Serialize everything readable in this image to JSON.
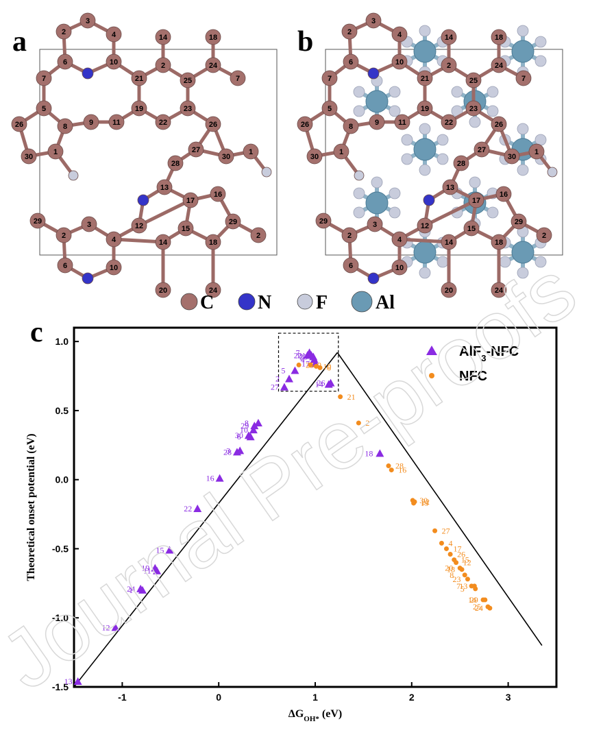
{
  "panels": {
    "a": {
      "letter": "a"
    },
    "b": {
      "letter": "b"
    },
    "c": {
      "letter": "c"
    }
  },
  "atom_legend": [
    {
      "label": "C",
      "color": "#a4706c"
    },
    {
      "label": "N",
      "color": "#3434c8"
    },
    {
      "label": "F",
      "color": "#c8ccdc"
    },
    {
      "label": "Al",
      "color": "#6a9ab4"
    }
  ],
  "structure_atoms": {
    "a": [
      {
        "n": "3",
        "t": "C"
      },
      {
        "n": "2",
        "t": "C"
      },
      {
        "n": "4",
        "t": "C"
      },
      {
        "n": "6",
        "t": "C"
      },
      {
        "n": "",
        "t": "N"
      },
      {
        "n": "10",
        "t": "C"
      },
      {
        "n": "14",
        "t": "C"
      },
      {
        "n": "18",
        "t": "C"
      },
      {
        "n": "7",
        "t": "C"
      },
      {
        "n": "21",
        "t": "C"
      },
      {
        "n": "2",
        "t": "C"
      },
      {
        "n": "25",
        "t": "C"
      },
      {
        "n": "24",
        "t": "C"
      },
      {
        "n": "7",
        "t": "C"
      },
      {
        "n": "5",
        "t": "C"
      },
      {
        "n": "26",
        "t": "C"
      },
      {
        "n": "8",
        "t": "C"
      },
      {
        "n": "9",
        "t": "C"
      },
      {
        "n": "11",
        "t": "C"
      },
      {
        "n": "19",
        "t": "C"
      },
      {
        "n": "22",
        "t": "C"
      },
      {
        "n": "23",
        "t": "C"
      },
      {
        "n": "26",
        "t": "C"
      },
      {
        "n": "1",
        "t": "C"
      },
      {
        "n": "30",
        "t": "C"
      },
      {
        "n": "",
        "t": "F"
      },
      {
        "n": "27",
        "t": "C"
      },
      {
        "n": "30",
        "t": "C"
      },
      {
        "n": "1",
        "t": "C"
      },
      {
        "n": "",
        "t": "F"
      },
      {
        "n": "28",
        "t": "C"
      },
      {
        "n": "13",
        "t": "C"
      },
      {
        "n": "",
        "t": "N"
      },
      {
        "n": "17",
        "t": "C"
      },
      {
        "n": "16",
        "t": "C"
      },
      {
        "n": "29",
        "t": "C"
      },
      {
        "n": "3",
        "t": "C"
      },
      {
        "n": "2",
        "t": "C"
      },
      {
        "n": "4",
        "t": "C"
      },
      {
        "n": "12",
        "t": "C"
      },
      {
        "n": "15",
        "t": "C"
      },
      {
        "n": "29",
        "t": "C"
      },
      {
        "n": "14",
        "t": "C"
      },
      {
        "n": "18",
        "t": "C"
      },
      {
        "n": "2",
        "t": "C"
      },
      {
        "n": "6",
        "t": "C"
      },
      {
        "n": "10",
        "t": "C"
      },
      {
        "n": "",
        "t": "N"
      },
      {
        "n": "20",
        "t": "C"
      },
      {
        "n": "24",
        "t": "C"
      }
    ]
  },
  "chart_data": {
    "type": "scatter",
    "xlabel_main": "ΔG",
    "xlabel_sub": "OH*",
    "xlabel_unit": " (eV)",
    "ylabel": "Theoretical onset potential (eV)",
    "xlim": [
      -1.5,
      3.5
    ],
    "ylim": [
      -1.5,
      1.1
    ],
    "xticks": [
      {
        "v": -1,
        "label": "-1"
      },
      {
        "v": 0,
        "label": "0"
      },
      {
        "v": 1,
        "label": "1"
      },
      {
        "v": 2,
        "label": "2"
      },
      {
        "v": 3,
        "label": "3"
      }
    ],
    "yticks": [
      {
        "v": -1.5,
        "label": "-1.5"
      },
      {
        "v": -1.0,
        "label": "-1.0"
      },
      {
        "v": -0.5,
        "label": "-0.5"
      },
      {
        "v": 0.0,
        "label": "0.0"
      },
      {
        "v": 0.5,
        "label": "0.5"
      },
      {
        "v": 1.0,
        "label": "1.0"
      }
    ],
    "volcano_peak": [
      1.23,
      0.92
    ],
    "series": [
      {
        "name": "AlF3-NFC",
        "legend_main": "AlF",
        "legend_sub": "3",
        "legend_rest": "-NFC",
        "marker": "triangle",
        "color": "#8a2be2",
        "points": [
          {
            "label": "13",
            "x": -1.46,
            "y": -1.46
          },
          {
            "label": "12",
            "x": -1.07,
            "y": -1.07
          },
          {
            "label": "24",
            "x": -0.81,
            "y": -0.79
          },
          {
            "label": "1",
            "x": -0.79,
            "y": -0.8
          },
          {
            "label": "19",
            "x": -0.66,
            "y": -0.64
          },
          {
            "label": "11",
            "x": -0.64,
            "y": -0.66
          },
          {
            "label": "15",
            "x": -0.51,
            "y": -0.51
          },
          {
            "label": "22",
            "x": -0.22,
            "y": -0.21
          },
          {
            "label": "16",
            "x": 0.01,
            "y": 0.01
          },
          {
            "label": "28",
            "x": 0.19,
            "y": 0.2
          },
          {
            "label": "3",
            "x": 0.22,
            "y": 0.21
          },
          {
            "label": "30",
            "x": 0.31,
            "y": 0.32
          },
          {
            "label": "6",
            "x": 0.33,
            "y": 0.31
          },
          {
            "label": "10",
            "x": 0.36,
            "y": 0.36
          },
          {
            "label": "29",
            "x": 0.37,
            "y": 0.39
          },
          {
            "label": "8",
            "x": 0.41,
            "y": 0.41
          },
          {
            "label": "27",
            "x": 0.68,
            "y": 0.67
          },
          {
            "label": "2",
            "x": 0.73,
            "y": 0.73
          },
          {
            "label": "5",
            "x": 0.79,
            "y": 0.79
          },
          {
            "label": "20",
            "x": 0.92,
            "y": 0.9
          },
          {
            "label": "7",
            "x": 0.94,
            "y": 0.92
          },
          {
            "label": "21",
            "x": 0.96,
            "y": 0.9
          },
          {
            "label": "23",
            "x": 0.98,
            "y": 0.89
          },
          {
            "label": "4",
            "x": 0.99,
            "y": 0.87
          },
          {
            "label": "17",
            "x": 1.0,
            "y": 0.84
          },
          {
            "label": "14",
            "x": 1.14,
            "y": 0.69
          },
          {
            "label": "26",
            "x": 1.16,
            "y": 0.7
          },
          {
            "label": "18",
            "x": 1.67,
            "y": 0.19
          }
        ]
      },
      {
        "name": "NFC",
        "legend_main": "NFC",
        "legend_sub": "",
        "legend_rest": "",
        "marker": "circle",
        "color": "#f28c1e",
        "points": [
          {
            "label": "25",
            "x": 0.83,
            "y": 0.83
          },
          {
            "label": "9",
            "x": 0.95,
            "y": 0.83
          },
          {
            "label": "10",
            "x": 1.01,
            "y": 0.82
          },
          {
            "label": "6",
            "x": 1.05,
            "y": 0.81
          },
          {
            "label": "21",
            "x": 1.26,
            "y": 0.6
          },
          {
            "label": "2",
            "x": 1.45,
            "y": 0.41
          },
          {
            "label": "28",
            "x": 1.76,
            "y": 0.1
          },
          {
            "label": "16",
            "x": 1.79,
            "y": 0.07
          },
          {
            "label": "30",
            "x": 2.01,
            "y": -0.15
          },
          {
            "label": "22",
            "x": 2.03,
            "y": -0.16
          },
          {
            "label": "19",
            "x": 2.02,
            "y": -0.17
          },
          {
            "label": "27",
            "x": 2.24,
            "y": -0.37
          },
          {
            "label": "4",
            "x": 2.31,
            "y": -0.46
          },
          {
            "label": "17",
            "x": 2.36,
            "y": -0.5
          },
          {
            "label": "26",
            "x": 2.4,
            "y": -0.54
          },
          {
            "label": "15",
            "x": 2.44,
            "y": -0.58
          },
          {
            "label": "12",
            "x": 2.46,
            "y": -0.6
          },
          {
            "label": "20",
            "x": 2.5,
            "y": -0.64
          },
          {
            "label": "18",
            "x": 2.52,
            "y": -0.65
          },
          {
            "label": "8",
            "x": 2.55,
            "y": -0.69
          },
          {
            "label": "23",
            "x": 2.58,
            "y": -0.72
          },
          {
            "label": "7",
            "x": 2.62,
            "y": -0.77
          },
          {
            "label": "13",
            "x": 2.65,
            "y": -0.77
          },
          {
            "label": "5",
            "x": 2.66,
            "y": -0.79
          },
          {
            "label": "14",
            "x": 2.74,
            "y": -0.87
          },
          {
            "label": "29",
            "x": 2.76,
            "y": -0.87
          },
          {
            "label": "25",
            "x": 2.79,
            "y": -0.92
          },
          {
            "label": "24",
            "x": 2.81,
            "y": -0.93
          }
        ]
      }
    ],
    "legend_position": "top-right",
    "grid": false
  },
  "watermark": "Journal Pre-proofs"
}
